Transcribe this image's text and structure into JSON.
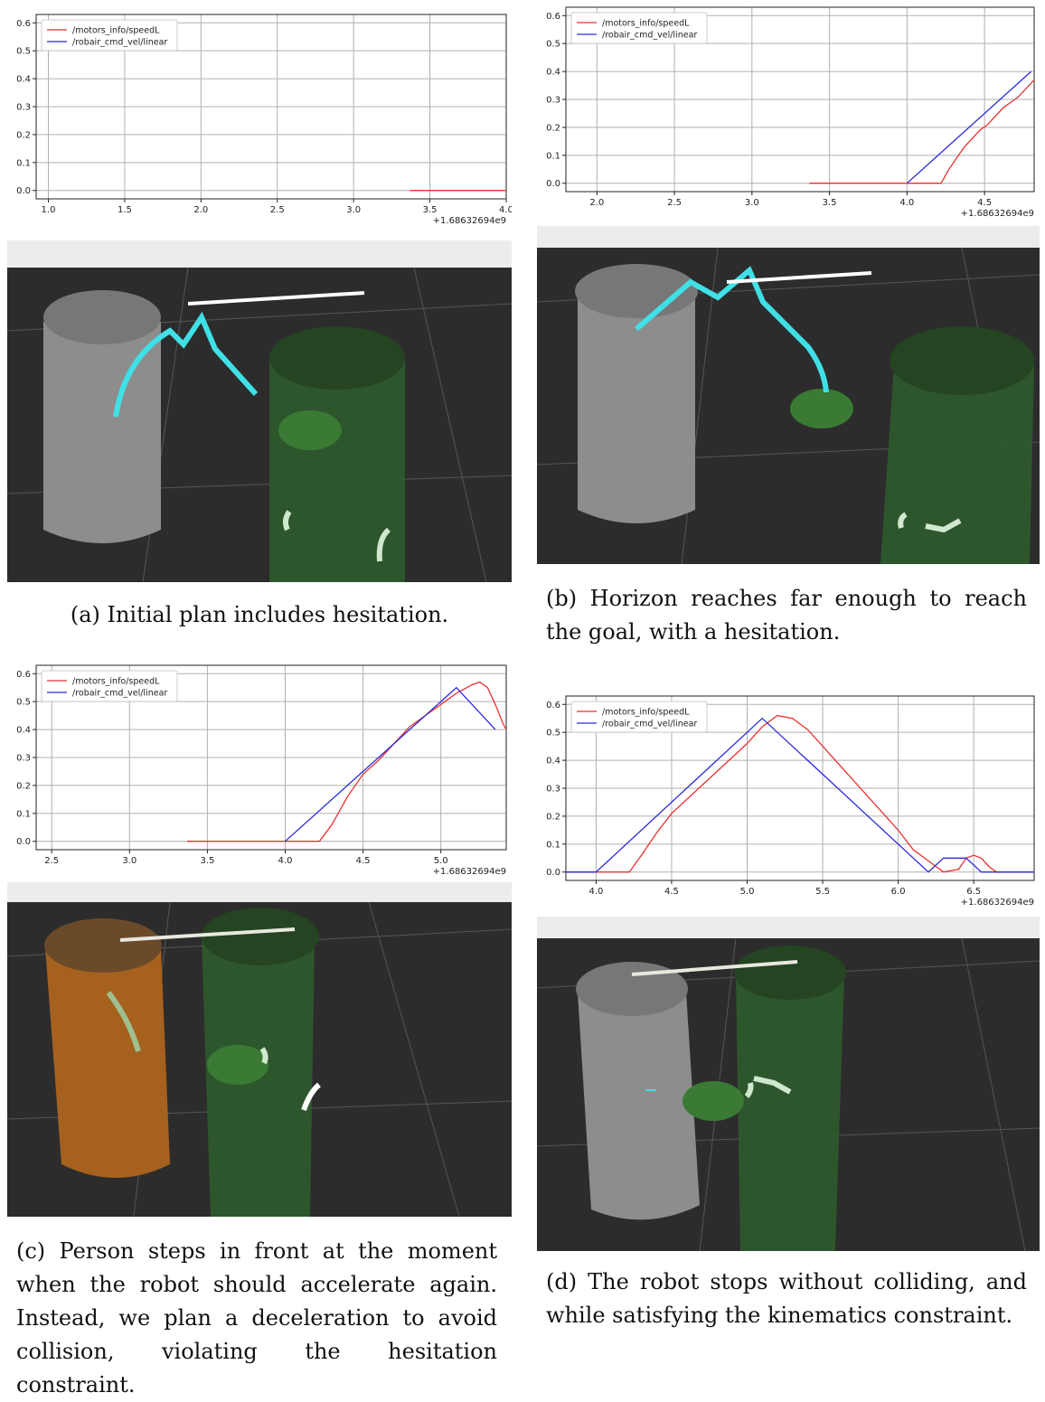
{
  "figures": [
    {
      "caption": "(a) Initial plan includes hesitation.",
      "chart_data": {
        "type": "line",
        "x_offset_label": "+1.68632694e9",
        "xlim": [
          0.92,
          4.0
        ],
        "ylim": [
          -0.03,
          0.63
        ],
        "xticks": [
          1.0,
          1.5,
          2.0,
          2.5,
          3.0,
          3.5,
          4.0
        ],
        "xtick_labels": [
          "1.0",
          "1.5",
          "2.0",
          "2.5",
          "3.0",
          "3.5",
          "4.0"
        ],
        "yticks": [
          0.0,
          0.1,
          0.2,
          0.3,
          0.4,
          0.5,
          0.6
        ],
        "ytick_labels": [
          "0.0",
          "0.1",
          "0.2",
          "0.3",
          "0.4",
          "0.5",
          "0.6"
        ],
        "grid": true,
        "legend": "top-left",
        "series": [
          {
            "name": "/motors_info/speedL",
            "color": "#e8322f",
            "x": [
              3.37,
              4.0
            ],
            "y": [
              0.0,
              0.0
            ]
          },
          {
            "name": "/robair_cmd_vel/linear",
            "color": "#2b2bdb",
            "x": [],
            "y": []
          }
        ]
      }
    },
    {
      "caption": "(b) Horizon reaches far enough to reach the goal, with a hesitation.",
      "chart_data": {
        "type": "line",
        "x_offset_label": "+1.68632694e9",
        "xlim": [
          1.8,
          4.82
        ],
        "ylim": [
          -0.03,
          0.63
        ],
        "xticks": [
          2.0,
          2.5,
          3.0,
          3.5,
          4.0,
          4.5
        ],
        "xtick_labels": [
          "2.0",
          "2.5",
          "3.0",
          "3.5",
          "4.0",
          "4.5"
        ],
        "yticks": [
          0.0,
          0.1,
          0.2,
          0.3,
          0.4,
          0.5,
          0.6
        ],
        "ytick_labels": [
          "0.0",
          "0.1",
          "0.2",
          "0.3",
          "0.4",
          "0.5",
          "0.6"
        ],
        "grid": true,
        "legend": "top-left",
        "series": [
          {
            "name": "/motors_info/speedL",
            "color": "#e8322f",
            "x": [
              3.37,
              4.22,
              4.27,
              4.32,
              4.37,
              4.42,
              4.47,
              4.52,
              4.57,
              4.62,
              4.67,
              4.72,
              4.77,
              4.82
            ],
            "y": [
              0.0,
              0.0,
              0.05,
              0.09,
              0.13,
              0.16,
              0.19,
              0.21,
              0.24,
              0.27,
              0.29,
              0.31,
              0.34,
              0.37
            ]
          },
          {
            "name": "/robair_cmd_vel/linear",
            "color": "#2b2bdb",
            "x": [
              4.0,
              4.8
            ],
            "y": [
              0.0,
              0.4
            ]
          }
        ]
      }
    },
    {
      "caption": "(c) Person steps in front at the moment when the robot should accelerate again. Instead, we plan a deceleration to avoid collision, violating the hesitation constraint.",
      "chart_data": {
        "type": "line",
        "x_offset_label": "+1.68632694e9",
        "xlim": [
          2.4,
          5.42
        ],
        "ylim": [
          -0.03,
          0.63
        ],
        "xticks": [
          2.5,
          3.0,
          3.5,
          4.0,
          4.5,
          5.0
        ],
        "xtick_labels": [
          "2.5",
          "3.0",
          "3.5",
          "4.0",
          "4.5",
          "5.0"
        ],
        "yticks": [
          0.0,
          0.1,
          0.2,
          0.3,
          0.4,
          0.5,
          0.6
        ],
        "ytick_labels": [
          "0.0",
          "0.1",
          "0.2",
          "0.3",
          "0.4",
          "0.5",
          "0.6"
        ],
        "grid": true,
        "legend": "top-left",
        "series": [
          {
            "name": "/motors_info/speedL",
            "color": "#e8322f",
            "x": [
              3.37,
              4.22,
              4.3,
              4.4,
              4.5,
              4.6,
              4.7,
              4.8,
              4.9,
              5.0,
              5.1,
              5.2,
              5.25,
              5.3,
              5.35,
              5.4,
              5.42
            ],
            "y": [
              0.0,
              0.0,
              0.06,
              0.16,
              0.24,
              0.29,
              0.35,
              0.41,
              0.45,
              0.49,
              0.53,
              0.56,
              0.57,
              0.55,
              0.49,
              0.42,
              0.4
            ]
          },
          {
            "name": "/robair_cmd_vel/linear",
            "color": "#2b2bdb",
            "x": [
              4.0,
              5.1,
              5.35
            ],
            "y": [
              0.0,
              0.55,
              0.4
            ]
          }
        ]
      }
    },
    {
      "caption": "(d) The robot stops without colliding, and while satisfying the kinematics constraint.",
      "chart_data": {
        "type": "line",
        "x_offset_label": "+1.68632694e9",
        "xlim": [
          3.8,
          6.9
        ],
        "ylim": [
          -0.03,
          0.63
        ],
        "xticks": [
          4.0,
          4.5,
          5.0,
          5.5,
          6.0,
          6.5
        ],
        "xtick_labels": [
          "4.0",
          "4.5",
          "5.0",
          "5.5",
          "6.0",
          "6.5"
        ],
        "yticks": [
          0.0,
          0.1,
          0.2,
          0.3,
          0.4,
          0.5,
          0.6
        ],
        "ytick_labels": [
          "0.0",
          "0.1",
          "0.2",
          "0.3",
          "0.4",
          "0.5",
          "0.6"
        ],
        "grid": true,
        "legend": "top-left",
        "series": [
          {
            "name": "/motors_info/speedL",
            "color": "#e8322f",
            "x": [
              3.8,
              4.22,
              4.3,
              4.4,
              4.5,
              4.6,
              4.7,
              4.8,
              4.9,
              5.0,
              5.1,
              5.2,
              5.3,
              5.4,
              5.5,
              5.6,
              5.7,
              5.8,
              5.9,
              6.0,
              6.1,
              6.2,
              6.3,
              6.4,
              6.45,
              6.5,
              6.55,
              6.6,
              6.65,
              6.9
            ],
            "y": [
              0.0,
              0.0,
              0.06,
              0.14,
              0.21,
              0.26,
              0.31,
              0.36,
              0.41,
              0.46,
              0.52,
              0.56,
              0.55,
              0.51,
              0.45,
              0.39,
              0.33,
              0.27,
              0.21,
              0.15,
              0.08,
              0.04,
              0.0,
              0.01,
              0.05,
              0.06,
              0.05,
              0.02,
              0.0,
              0.0
            ]
          },
          {
            "name": "/robair_cmd_vel/linear",
            "color": "#2b2bdb",
            "x": [
              3.8,
              4.0,
              5.1,
              6.2,
              6.3,
              6.45,
              6.55,
              6.9
            ],
            "y": [
              0.0,
              0.0,
              0.55,
              0.0,
              0.05,
              0.05,
              0.0,
              0.0
            ]
          }
        ]
      }
    }
  ]
}
